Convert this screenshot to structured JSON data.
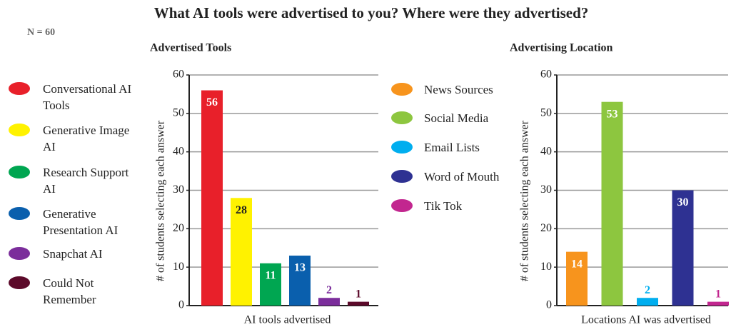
{
  "title": "What AI tools were advertised to you? Where were they advertised?",
  "note": "N = 60",
  "chart_data": [
    {
      "type": "bar",
      "title": "Advertised Tools",
      "ylabel": "# of students selecting each answer",
      "xlabel": "AI tools advertised",
      "categories": [
        "Conversational AI Tools",
        "Generative Image AI",
        "Research Support AI",
        "Generative Presentation AI",
        "Snapchat AI",
        "Could Not Remember"
      ],
      "values": [
        56,
        28,
        11,
        13,
        2,
        1
      ],
      "colors": [
        "#e8202a",
        "#fff200",
        "#00a651",
        "#0a5fad",
        "#7b2d9b",
        "#5c0a2a"
      ],
      "ylim": [
        0,
        60
      ],
      "yticks": [
        0,
        10,
        20,
        30,
        40,
        50,
        60
      ],
      "grid": true
    },
    {
      "type": "bar",
      "title": "Advertising Location",
      "ylabel": "# of students selecting each answer",
      "xlabel": "Locations AI was advertised",
      "categories": [
        "News Sources",
        "Social Media",
        "Email Lists",
        "Word of Mouth",
        "Tik Tok"
      ],
      "values": [
        14,
        53,
        2,
        30,
        1
      ],
      "colors": [
        "#f7941d",
        "#8dc63f",
        "#00aeef",
        "#2e3192",
        "#c2268f"
      ],
      "ylim": [
        0,
        60
      ],
      "yticks": [
        0,
        10,
        20,
        30,
        40,
        50,
        60
      ],
      "grid": true
    }
  ]
}
